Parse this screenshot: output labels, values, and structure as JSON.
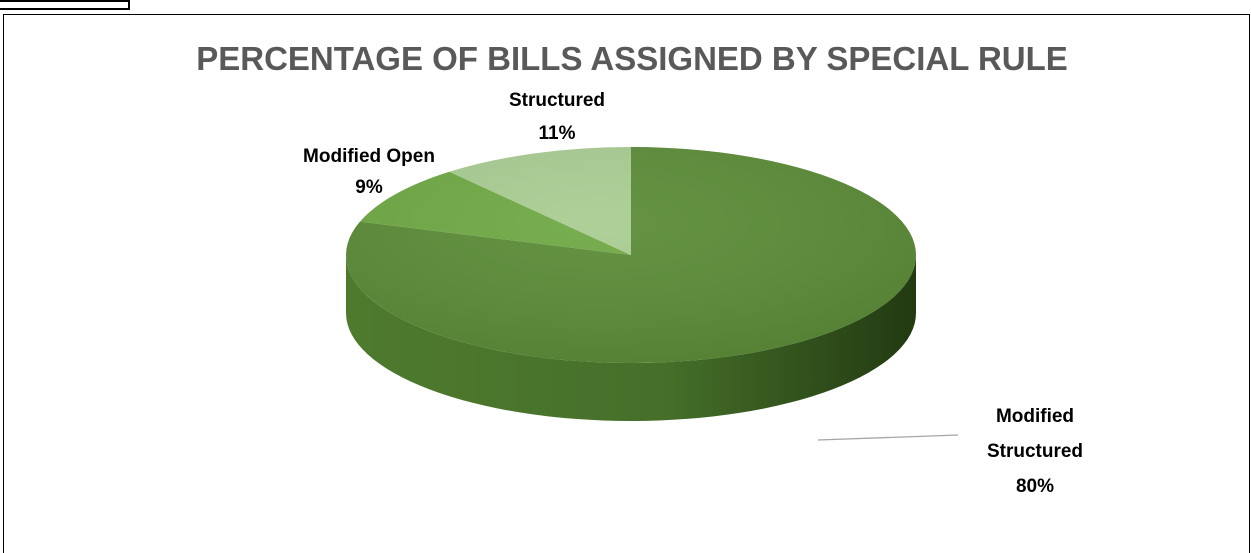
{
  "chart_data": {
    "type": "pie",
    "title": "PERCENTAGE OF BILLS ASSIGNED BY SPECIAL RULE",
    "start_angle_deg": 0,
    "direction": "clockwise",
    "slices": [
      {
        "name": "Modified Structured",
        "value": 80,
        "label_line1": "Modified",
        "label_line2": "Structured",
        "label_pct": "80%",
        "color": "#5b8c37"
      },
      {
        "name": "Modified Open",
        "value": 9,
        "label_line1": "Modified Open",
        "label_pct": "9%",
        "color": "#6fa944"
      },
      {
        "name": "Structured",
        "value": 11,
        "label_line1": "Structured",
        "label_pct": "11%",
        "color": "#a9cd92"
      }
    ],
    "side_color_light": "#4f7a30",
    "side_color_dark": "#2b4517",
    "legend": "none"
  }
}
